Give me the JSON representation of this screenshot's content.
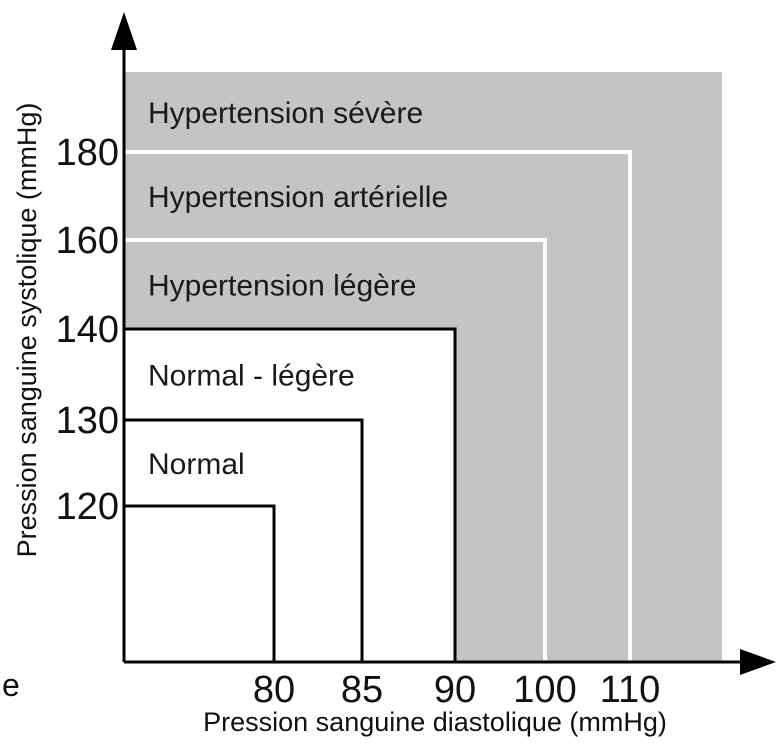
{
  "chart_data": {
    "type": "diagram",
    "title": "",
    "xlabel": "Pression sanguine diastolique (mmHg)",
    "ylabel": "Pression sanguine systolique (mmHg)",
    "x_ticks": [
      {
        "value": 80,
        "label": "80"
      },
      {
        "value": 85,
        "label": "85"
      },
      {
        "value": 90,
        "label": "90"
      },
      {
        "value": 100,
        "label": "100"
      },
      {
        "value": 110,
        "label": "110"
      }
    ],
    "y_ticks": [
      {
        "value": 120,
        "label": "120"
      },
      {
        "value": 130,
        "label": "130"
      },
      {
        "value": 140,
        "label": "140"
      },
      {
        "value": 160,
        "label": "160"
      },
      {
        "value": 180,
        "label": "180"
      }
    ],
    "regions": [
      {
        "name": "Hypertension sévère",
        "x_max": null,
        "y_max": null,
        "shaded": true
      },
      {
        "name": "Hypertension artérielle",
        "x_max": 110,
        "y_max": 180,
        "shaded": true
      },
      {
        "name": "Hypertension légère",
        "x_max": 100,
        "y_max": 160,
        "shaded": true
      },
      {
        "name": "Normal - légère",
        "x_max": 90,
        "y_max": 140,
        "shaded": false
      },
      {
        "name": "Normal",
        "x_max": 85,
        "y_max": 130,
        "shaded": false
      },
      {
        "name": "",
        "x_max": 80,
        "y_max": 120,
        "shaded": false
      }
    ],
    "colors": {
      "shaded": "#c4c4c4",
      "unshaded": "#ffffff",
      "lines": "#000000"
    },
    "margin_text": "e"
  }
}
